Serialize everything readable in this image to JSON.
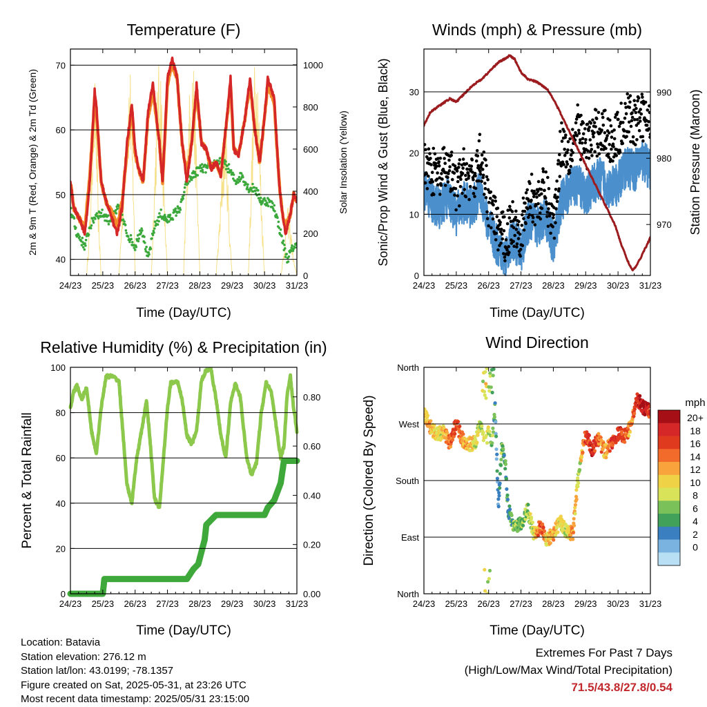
{
  "temperature": {
    "title": "Temperature (F)",
    "xlabel": "Time (Day/UTC)",
    "ylabel_left": "2m & 9m T (Red, Orange) & 2m Td (Green)",
    "ylabel_right": "Solar Insolation (Yellow)"
  },
  "winds": {
    "title": "Winds (mph) & Pressure (mb)",
    "xlabel": "Time (Day/UTC)",
    "ylabel_left": "Sonic/Prop Wind & Gust (Blue, Black)",
    "ylabel_right": "Station Pressure (Maroon)"
  },
  "humidity": {
    "title": "Relative Humidity (%) & Precipitation (in)",
    "xlabel": "Time (Day/UTC)",
    "ylabel_left": "Percent & Total Rainfall"
  },
  "direction": {
    "title": "Wind Direction",
    "xlabel": "Time (Day/UTC)",
    "ylabel_left": "Direction (Colored By Speed)",
    "legend_title": "mph",
    "legend_labels": [
      "20+",
      "18",
      "16",
      "14",
      "12",
      "10",
      "8",
      "6",
      "4",
      "2",
      "0"
    ],
    "legend_colors": [
      "#a50f15",
      "#d62728",
      "#e03a1e",
      "#f26b2b",
      "#f9a33d",
      "#f0d246",
      "#d9e35a",
      "#7bc15a",
      "#41a05a",
      "#3a80c0",
      "#7ab3e0",
      "#b9dff5"
    ]
  },
  "info": {
    "location": "Location: Batavia",
    "elevation": "Station elevation: 276.12 m",
    "latlon": "Station lat/lon: 43.0199; -78.1357",
    "created": "Figure created on Sat, 2025-05-31, at 23:26 UTC",
    "recent": "Most recent data timestamp: 2025/05/31 23:15:00"
  },
  "extremes": {
    "line1": "Extremes For Past 7 Days",
    "line2": "(High/Low/Max Wind/Total Precipitation)",
    "values": "71.5/43.8/27.8/0.54"
  },
  "chart_data": [
    {
      "type": "line",
      "panel": "temperature",
      "x_ticks": [
        "24/23",
        "25/23",
        "26/23",
        "27/23",
        "28/23",
        "29/23",
        "30/23",
        "31/23"
      ],
      "xlim": [
        0,
        7
      ],
      "ylim": [
        37.5,
        72.5
      ],
      "y_ticks": [
        40,
        50,
        60,
        70
      ],
      "y2lim": [
        0,
        1075
      ],
      "y2_ticks": [
        0,
        200,
        400,
        600,
        800,
        1000
      ],
      "colors": {
        "t2m": "#d62728",
        "t9m": "#f28c28",
        "td": "#3aa83a",
        "solar": "#f6e08a"
      },
      "series": [
        {
          "key": "t2m",
          "x": [
            0,
            0.1,
            0.3,
            0.45,
            0.6,
            0.75,
            0.8,
            0.95,
            1.1,
            1.3,
            1.45,
            1.6,
            1.75,
            1.9,
            2.0,
            2.1,
            2.25,
            2.4,
            2.55,
            2.75,
            2.85,
            3.0,
            3.15,
            3.3,
            3.45,
            3.6,
            3.75,
            3.9,
            4.05,
            4.2,
            4.35,
            4.5,
            4.65,
            4.8,
            4.95,
            5.05,
            5.2,
            5.4,
            5.55,
            5.7,
            5.85,
            6.0,
            6.1,
            6.3,
            6.45,
            6.55,
            6.65,
            6.8,
            6.9,
            7.0
          ],
          "values": [
            52,
            48,
            46,
            44,
            52,
            66,
            64,
            52,
            49,
            46,
            44,
            48,
            58,
            64,
            57,
            54,
            52,
            63,
            67,
            58,
            52,
            68,
            71,
            68,
            58,
            52,
            58,
            67,
            58,
            57,
            54,
            55,
            53,
            60,
            68,
            57,
            56,
            62,
            68,
            60,
            55,
            62,
            68,
            65,
            52,
            47,
            44,
            47,
            50,
            49
          ]
        },
        {
          "key": "t9m",
          "x": [
            0,
            0.1,
            0.3,
            0.45,
            0.6,
            0.75,
            0.8,
            0.95,
            1.1,
            1.3,
            1.45,
            1.6,
            1.75,
            1.9,
            2.0,
            2.1,
            2.25,
            2.4,
            2.55,
            2.75,
            2.85,
            3.0,
            3.15,
            3.3,
            3.45,
            3.6,
            3.75,
            3.9,
            4.05,
            4.2,
            4.35,
            4.5,
            4.65,
            4.8,
            4.95,
            5.05,
            5.2,
            5.4,
            5.55,
            5.7,
            5.85,
            6.0,
            6.1,
            6.3,
            6.45,
            6.55,
            6.65,
            6.8,
            6.9,
            7.0
          ],
          "values": [
            52,
            48,
            46,
            45,
            53,
            65,
            63,
            52,
            49,
            47,
            45,
            49,
            57,
            63,
            56,
            54,
            52,
            62,
            66,
            58,
            52,
            67,
            70,
            68,
            58,
            53,
            58,
            66,
            58,
            57,
            54,
            55,
            53,
            60,
            67,
            57,
            56,
            62,
            67,
            60,
            55,
            62,
            67,
            64,
            52,
            47,
            45,
            47,
            50,
            49
          ]
        },
        {
          "key": "td",
          "x": [
            0,
            0.2,
            0.45,
            0.6,
            0.8,
            1.0,
            1.2,
            1.5,
            1.75,
            2.0,
            2.2,
            2.4,
            2.6,
            2.8,
            3.0,
            3.2,
            3.4,
            3.6,
            3.8,
            4.0,
            4.2,
            4.5,
            4.7,
            4.9,
            5.1,
            5.3,
            5.5,
            5.7,
            5.9,
            6.1,
            6.3,
            6.5,
            6.7,
            6.8,
            6.9,
            7.0
          ],
          "values": [
            48,
            44,
            42,
            45,
            47,
            47,
            46,
            48,
            44,
            42,
            45,
            40,
            45,
            47,
            46,
            47,
            48,
            52,
            53,
            54,
            54,
            55,
            55,
            54,
            52,
            53,
            51,
            51,
            49,
            49,
            48,
            44,
            40,
            41,
            42,
            42
          ]
        },
        {
          "key": "solar",
          "x": [
            0.5,
            0.62,
            0.7,
            0.78,
            0.85,
            0.95,
            1.5,
            1.65,
            1.75,
            1.85,
            1.95,
            2.0,
            2.5,
            2.62,
            2.7,
            2.8,
            2.9,
            3.0,
            3.5,
            3.62,
            3.72,
            3.8,
            3.9,
            4.0,
            4.5,
            4.62,
            4.7,
            4.8,
            4.9,
            5.0,
            5.5,
            5.62,
            5.7,
            5.8,
            5.9,
            6.0,
            6.5,
            6.62,
            6.7,
            6.8,
            6.9,
            7.0
          ],
          "values": [
            0,
            350,
            900,
            950,
            400,
            0,
            0,
            500,
            900,
            1000,
            500,
            0,
            0,
            600,
            1000,
            1020,
            400,
            0,
            0,
            700,
            1000,
            1070,
            600,
            0,
            0,
            300,
            550,
            800,
            300,
            0,
            0,
            700,
            1050,
            1000,
            400,
            0,
            0,
            150,
            350,
            250,
            80,
            0
          ]
        }
      ]
    },
    {
      "type": "scatter",
      "panel": "winds",
      "x_ticks": [
        "24/23",
        "25/23",
        "26/23",
        "27/23",
        "28/23",
        "29/23",
        "30/23",
        "31/23"
      ],
      "xlim": [
        0,
        7
      ],
      "ylim": [
        0,
        37
      ],
      "y_ticks": [
        0,
        10,
        20,
        30
      ],
      "y2lim": [
        962.3,
        996.5
      ],
      "y2_ticks": [
        970,
        980,
        990
      ],
      "colors": {
        "wind": "#4b90cc",
        "gust": "#000000",
        "pressure": "#9b1b1e"
      },
      "series": [
        {
          "key": "wind",
          "x": [
            0,
            0.25,
            0.5,
            0.75,
            1.0,
            1.25,
            1.5,
            1.75,
            2.0,
            2.25,
            2.5,
            2.75,
            3.0,
            3.25,
            3.5,
            3.75,
            4.0,
            4.25,
            4.5,
            4.75,
            5.0,
            5.25,
            5.5,
            5.75,
            6.0,
            6.25,
            6.5,
            6.75,
            7.0
          ],
          "values": [
            14,
            12,
            11,
            13,
            10,
            12,
            11,
            14,
            8,
            5,
            3,
            6,
            4,
            9,
            8,
            10,
            5,
            12,
            14,
            15,
            13,
            15,
            16,
            14,
            15,
            18,
            17,
            19,
            17
          ]
        },
        {
          "key": "gust",
          "x": [
            0,
            0.25,
            0.5,
            0.75,
            1.0,
            1.25,
            1.5,
            1.75,
            2.0,
            2.25,
            2.5,
            2.75,
            3.0,
            3.25,
            3.5,
            3.75,
            4.0,
            4.25,
            4.5,
            4.75,
            5.0,
            5.25,
            5.5,
            5.75,
            6.0,
            6.25,
            6.5,
            6.75,
            7.0
          ],
          "values": [
            19,
            17,
            16,
            18,
            14,
            17,
            15,
            20,
            12,
            8,
            6,
            9,
            7,
            13,
            12,
            14,
            8,
            22,
            20,
            24,
            21,
            23,
            24,
            22,
            23,
            26,
            25,
            26,
            24
          ]
        },
        {
          "key": "pressure",
          "x": [
            0,
            0.2,
            0.5,
            0.8,
            1.0,
            1.2,
            1.5,
            1.8,
            2.0,
            2.3,
            2.5,
            2.65,
            2.8,
            3.0,
            3.2,
            3.5,
            3.8,
            4.0,
            4.2,
            4.5,
            4.8,
            5.0,
            5.3,
            5.6,
            5.9,
            6.1,
            6.3,
            6.45,
            6.6,
            6.8,
            7.0
          ],
          "values": [
            985,
            987,
            988,
            989,
            988.5,
            989.5,
            991,
            992,
            993,
            994.5,
            995,
            995.5,
            995,
            993,
            992,
            991.5,
            990.5,
            989,
            987,
            984,
            981,
            979,
            976,
            973,
            970,
            967,
            964.5,
            963,
            964,
            966,
            968
          ]
        }
      ]
    },
    {
      "type": "line",
      "panel": "humidity",
      "x_ticks": [
        "24/23",
        "25/23",
        "26/23",
        "27/23",
        "28/23",
        "29/23",
        "30/23",
        "31/23"
      ],
      "xlim": [
        0,
        7
      ],
      "ylim": [
        0,
        100
      ],
      "y_ticks": [
        0,
        20,
        40,
        60,
        80,
        100
      ],
      "y2lim": [
        0,
        0.92
      ],
      "y2_ticks": [
        "0.00",
        "0.20",
        "0.40",
        "0.60",
        "0.80"
      ],
      "colors": {
        "rh": "#8cc84b",
        "precip": "#3ea83a"
      },
      "series": [
        {
          "key": "rh",
          "x": [
            0,
            0.1,
            0.2,
            0.35,
            0.5,
            0.65,
            0.8,
            0.95,
            1.1,
            1.3,
            1.5,
            1.6,
            1.75,
            1.9,
            2.05,
            2.2,
            2.35,
            2.45,
            2.6,
            2.75,
            2.85,
            3.0,
            3.1,
            3.3,
            3.45,
            3.6,
            3.75,
            3.9,
            4.05,
            4.2,
            4.35,
            4.5,
            4.65,
            4.8,
            4.95,
            5.1,
            5.25,
            5.45,
            5.6,
            5.75,
            5.9,
            6.05,
            6.2,
            6.35,
            6.5,
            6.6,
            6.7,
            6.8,
            6.9,
            7.0
          ],
          "values": [
            82,
            89,
            92,
            86,
            91,
            72,
            62,
            82,
            96,
            96,
            94,
            75,
            48,
            40,
            60,
            72,
            85,
            70,
            42,
            38,
            55,
            82,
            93,
            94,
            86,
            70,
            66,
            72,
            94,
            99,
            99,
            86,
            70,
            60,
            84,
            93,
            87,
            60,
            52,
            58,
            80,
            93,
            90,
            75,
            60,
            65,
            88,
            96,
            82,
            72
          ]
        },
        {
          "key": "precip",
          "x": [
            0,
            1.0,
            1.05,
            2.0,
            3.0,
            3.6,
            3.8,
            3.95,
            4.15,
            4.2,
            4.35,
            4.5,
            5.0,
            6.0,
            6.1,
            6.3,
            6.5,
            6.6,
            7.0
          ],
          "values": [
            0.0,
            0.0,
            0.06,
            0.06,
            0.06,
            0.06,
            0.1,
            0.12,
            0.22,
            0.28,
            0.3,
            0.32,
            0.32,
            0.32,
            0.35,
            0.38,
            0.45,
            0.54,
            0.54
          ]
        }
      ]
    },
    {
      "type": "scatter",
      "panel": "direction",
      "x_ticks": [
        "24/23",
        "25/23",
        "26/23",
        "27/23",
        "28/23",
        "29/23",
        "30/23",
        "31/23"
      ],
      "xlim": [
        0,
        7
      ],
      "y_ticks": [
        "North",
        "East",
        "South",
        "West",
        "North"
      ],
      "ylim": [
        0,
        360
      ],
      "colorbar": "speed (mph)",
      "x": [
        0,
        0.2,
        0.4,
        0.6,
        0.8,
        1.0,
        1.2,
        1.4,
        1.6,
        1.7,
        1.8,
        1.9,
        2.0,
        2.1,
        2.2,
        2.3,
        2.4,
        2.5,
        2.6,
        2.8,
        3.0,
        3.2,
        3.4,
        3.6,
        3.8,
        4.0,
        4.2,
        4.4,
        4.6,
        4.8,
        5.0,
        5.2,
        5.4,
        5.6,
        5.8,
        6.0,
        6.2,
        6.4,
        6.6,
        6.8,
        7.0
      ],
      "values": [
        285,
        265,
        252,
        258,
        240,
        270,
        245,
        238,
        240,
        265,
        260,
        245,
        255,
        240,
        300,
        140,
        230,
        220,
        135,
        105,
        110,
        135,
        95,
        108,
        85,
        95,
        115,
        100,
        95,
        200,
        255,
        230,
        245,
        225,
        240,
        255,
        250,
        265,
        310,
        295,
        290
      ],
      "speeds": [
        12,
        11,
        10,
        9,
        14,
        16,
        12,
        11,
        9,
        7,
        8,
        10,
        7,
        6,
        3,
        2,
        6,
        4,
        3,
        6,
        5,
        7,
        8,
        16,
        10,
        12,
        9,
        8,
        13,
        7,
        16,
        18,
        14,
        11,
        16,
        18,
        15,
        12,
        18,
        20,
        16
      ]
    }
  ]
}
